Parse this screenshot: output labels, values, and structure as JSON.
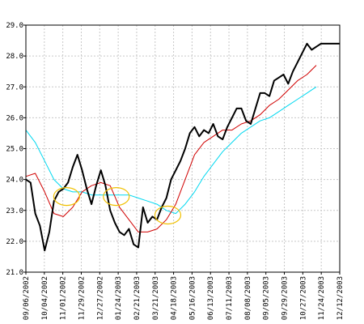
{
  "chart_data": {
    "type": "line",
    "title": "",
    "xlabel": "",
    "ylabel": "",
    "ylim": [
      21.0,
      29.0
    ],
    "y_ticks": [
      "21.0",
      "22.0",
      "23.0",
      "24.0",
      "25.0",
      "26.0",
      "27.0",
      "28.0",
      "29.0"
    ],
    "x_tick_labels": [
      "09/06/2002",
      "10/04/2002",
      "11/01/2002",
      "11/29/2002",
      "12/27/2002",
      "01/24/2003",
      "02/21/2003",
      "03/21/2003",
      "04/18/2003",
      "05/16/2003",
      "06/13/2003",
      "07/11/2003",
      "08/08/2003",
      "09/05/2003",
      "09/29/2003",
      "10/27/2003",
      "11/24/2003",
      "12/12/2003"
    ],
    "grid": true,
    "legend": "none",
    "colors": {
      "price": "#000000",
      "ma_short": "#d00000",
      "ma_long": "#00d8f0",
      "crossover_marker": "#f0c000",
      "grid": "#c8c8c8"
    },
    "series": [
      {
        "color_key": "price",
        "x": [
          0,
          1,
          2,
          3,
          4,
          5,
          6,
          7,
          8,
          9,
          10,
          11,
          12,
          13,
          14,
          15,
          16,
          17,
          18,
          19,
          20,
          21,
          22,
          23,
          24,
          25,
          26,
          27,
          28,
          29,
          30,
          31,
          32,
          33,
          34,
          35,
          36,
          37,
          38,
          39,
          40,
          41,
          42,
          43,
          44,
          45,
          46,
          47,
          48,
          49,
          50,
          51,
          52,
          53,
          54,
          55,
          56,
          57,
          58,
          59,
          60,
          61,
          62,
          63,
          64,
          65,
          66,
          67
        ],
        "values": [
          24.0,
          23.9,
          22.9,
          22.5,
          21.7,
          22.3,
          23.3,
          23.6,
          23.7,
          23.9,
          24.4,
          24.8,
          24.3,
          23.7,
          23.2,
          23.8,
          24.3,
          23.8,
          23.0,
          22.6,
          22.3,
          22.2,
          22.4,
          21.9,
          21.8,
          23.1,
          22.6,
          22.8,
          22.7,
          23.1,
          23.4,
          24.0,
          24.3,
          24.6,
          25.0,
          25.5,
          25.7,
          25.4,
          25.6,
          25.5,
          25.8,
          25.4,
          25.3,
          25.7,
          26.0,
          26.3,
          26.3,
          25.9,
          25.8,
          26.3,
          26.8,
          26.8,
          26.7,
          27.2,
          27.3,
          27.4,
          27.1,
          27.5,
          27.8,
          28.1,
          28.4,
          28.2,
          28.3,
          28.4,
          28.4,
          28.4,
          28.4,
          28.4
        ]
      },
      {
        "color_key": "ma_short",
        "x": [
          0,
          2,
          4,
          6,
          8,
          10,
          12,
          14,
          16,
          18,
          20,
          22,
          24,
          26,
          28,
          30,
          32,
          34,
          36,
          38,
          40,
          42,
          44,
          46,
          48,
          50,
          52,
          54,
          56,
          58,
          60,
          62
        ],
        "values": [
          24.1,
          24.2,
          23.6,
          22.9,
          22.8,
          23.1,
          23.6,
          23.8,
          23.9,
          23.8,
          23.1,
          22.7,
          22.3,
          22.3,
          22.4,
          22.7,
          23.2,
          24.0,
          24.8,
          25.2,
          25.4,
          25.6,
          25.6,
          25.8,
          25.9,
          26.1,
          26.4,
          26.6,
          26.9,
          27.2,
          27.4,
          27.7
        ]
      },
      {
        "color_key": "ma_long",
        "x": [
          0,
          2,
          4,
          6,
          8,
          10,
          12,
          14,
          16,
          18,
          20,
          22,
          24,
          26,
          28,
          30,
          32,
          34,
          36,
          38,
          40,
          42,
          44,
          46,
          48,
          50,
          52,
          54,
          56,
          58,
          60,
          62
        ],
        "values": [
          25.6,
          25.2,
          24.6,
          24.0,
          23.7,
          23.6,
          23.6,
          23.5,
          23.5,
          23.5,
          23.5,
          23.5,
          23.4,
          23.3,
          23.2,
          23.0,
          22.9,
          23.2,
          23.6,
          24.1,
          24.5,
          24.9,
          25.2,
          25.5,
          25.7,
          25.9,
          26.0,
          26.2,
          26.4,
          26.6,
          26.8,
          27.0
        ]
      }
    ],
    "crossover_markers": [
      {
        "x": 8.7,
        "y": 23.45
      },
      {
        "x": 19.3,
        "y": 23.45
      },
      {
        "x": 30.3,
        "y": 22.85
      }
    ]
  }
}
